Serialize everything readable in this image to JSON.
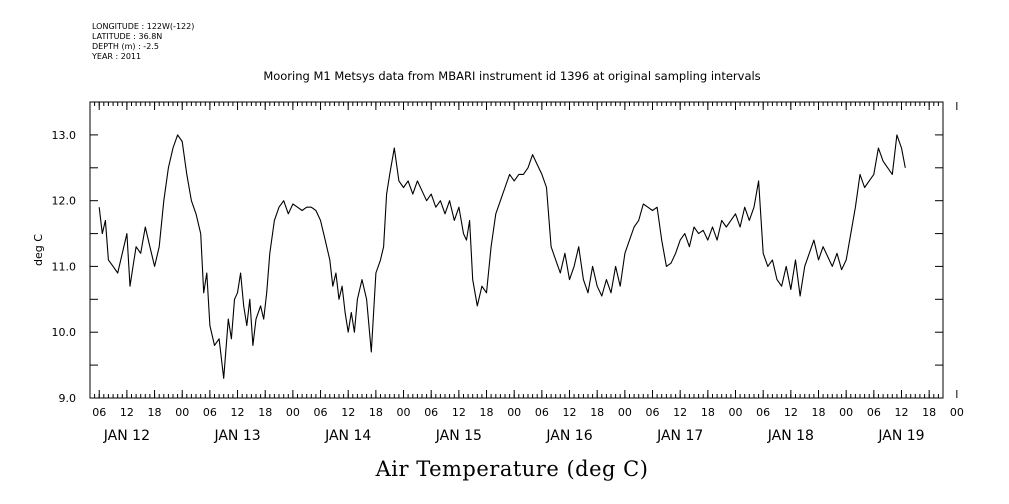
{
  "header": {
    "longitude": "LONGITUDE : 122W(-122)",
    "latitude": "LATITUDE : 36.8N",
    "depth": "DEPTH (m) : -2.5",
    "year": "YEAR : 2011"
  },
  "chart_data": {
    "type": "line",
    "title": "Mooring M1 Metsys data from MBARI instrument id 1396 at original sampling intervals",
    "xlabel": "Air Temperature (deg C)",
    "ylabel": "deg C",
    "ylim": [
      9.0,
      13.5
    ],
    "xlim": [
      "2011-01-12T04:00",
      "2011-01-19T21:00"
    ],
    "y_ticks": [
      "9.0",
      "10.0",
      "11.0",
      "12.0",
      "13.0"
    ],
    "y_tick_values": [
      9.0,
      10.0,
      11.0,
      12.0,
      13.0
    ],
    "hour_tick_labels": [
      "06",
      "12",
      "18",
      "00",
      "06",
      "12",
      "18",
      "00",
      "06",
      "12",
      "18",
      "00",
      "06",
      "12",
      "18",
      "00",
      "06",
      "12",
      "18",
      "00",
      "06",
      "12",
      "18",
      "00",
      "06",
      "12",
      "18",
      "00",
      "06",
      "12",
      "18",
      "00"
    ],
    "day_labels": [
      "JAN 12",
      "JAN 13",
      "JAN 14",
      "JAN 15",
      "JAN 16",
      "JAN 17",
      "JAN 18",
      "JAN 19"
    ],
    "grid": false,
    "series": [
      {
        "values": [
          [
            "2011-01-12T06:00",
            11.9
          ],
          [
            "2011-01-12T06:40",
            11.5
          ],
          [
            "2011-01-12T07:20",
            11.7
          ],
          [
            "2011-01-12T08:00",
            11.1
          ],
          [
            "2011-01-12T09:00",
            11.0
          ],
          [
            "2011-01-12T10:00",
            10.9
          ],
          [
            "2011-01-12T11:00",
            11.2
          ],
          [
            "2011-01-12T12:00",
            11.5
          ],
          [
            "2011-01-12T12:40",
            10.7
          ],
          [
            "2011-01-12T13:20",
            11.0
          ],
          [
            "2011-01-12T14:00",
            11.3
          ],
          [
            "2011-01-12T15:00",
            11.2
          ],
          [
            "2011-01-12T16:00",
            11.6
          ],
          [
            "2011-01-12T17:00",
            11.3
          ],
          [
            "2011-01-12T18:00",
            11.0
          ],
          [
            "2011-01-12T19:00",
            11.3
          ],
          [
            "2011-01-12T20:00",
            12.0
          ],
          [
            "2011-01-12T21:00",
            12.5
          ],
          [
            "2011-01-12T22:00",
            12.8
          ],
          [
            "2011-01-12T23:00",
            13.0
          ],
          [
            "2011-01-13T00:00",
            12.9
          ],
          [
            "2011-01-13T01:00",
            12.4
          ],
          [
            "2011-01-13T02:00",
            12.0
          ],
          [
            "2011-01-13T03:00",
            11.8
          ],
          [
            "2011-01-13T04:00",
            11.5
          ],
          [
            "2011-01-13T04:40",
            10.6
          ],
          [
            "2011-01-13T05:20",
            10.9
          ],
          [
            "2011-01-13T06:00",
            10.1
          ],
          [
            "2011-01-13T07:00",
            9.8
          ],
          [
            "2011-01-13T08:00",
            9.9
          ],
          [
            "2011-01-13T09:00",
            9.3
          ],
          [
            "2011-01-13T10:00",
            10.2
          ],
          [
            "2011-01-13T10:40",
            9.9
          ],
          [
            "2011-01-13T11:20",
            10.5
          ],
          [
            "2011-01-13T12:00",
            10.6
          ],
          [
            "2011-01-13T12:40",
            10.9
          ],
          [
            "2011-01-13T13:20",
            10.4
          ],
          [
            "2011-01-13T14:00",
            10.1
          ],
          [
            "2011-01-13T14:40",
            10.5
          ],
          [
            "2011-01-13T15:20",
            9.8
          ],
          [
            "2011-01-13T16:00",
            10.2
          ],
          [
            "2011-01-13T17:00",
            10.4
          ],
          [
            "2011-01-13T17:40",
            10.2
          ],
          [
            "2011-01-13T18:20",
            10.6
          ],
          [
            "2011-01-13T19:00",
            11.2
          ],
          [
            "2011-01-13T20:00",
            11.7
          ],
          [
            "2011-01-13T21:00",
            11.9
          ],
          [
            "2011-01-13T22:00",
            12.0
          ],
          [
            "2011-01-13T23:00",
            11.8
          ],
          [
            "2011-01-14T00:00",
            11.95
          ],
          [
            "2011-01-14T01:00",
            11.9
          ],
          [
            "2011-01-14T02:00",
            11.85
          ],
          [
            "2011-01-14T03:00",
            11.9
          ],
          [
            "2011-01-14T04:00",
            11.9
          ],
          [
            "2011-01-14T05:00",
            11.85
          ],
          [
            "2011-01-14T06:00",
            11.7
          ],
          [
            "2011-01-14T07:00",
            11.4
          ],
          [
            "2011-01-14T08:00",
            11.1
          ],
          [
            "2011-01-14T08:40",
            10.7
          ],
          [
            "2011-01-14T09:20",
            10.9
          ],
          [
            "2011-01-14T10:00",
            10.5
          ],
          [
            "2011-01-14T10:40",
            10.7
          ],
          [
            "2011-01-14T11:20",
            10.3
          ],
          [
            "2011-01-14T12:00",
            10.0
          ],
          [
            "2011-01-14T12:40",
            10.3
          ],
          [
            "2011-01-14T13:20",
            10.0
          ],
          [
            "2011-01-14T14:00",
            10.5
          ],
          [
            "2011-01-14T15:00",
            10.8
          ],
          [
            "2011-01-14T16:00",
            10.5
          ],
          [
            "2011-01-14T17:00",
            9.7
          ],
          [
            "2011-01-14T18:00",
            10.9
          ],
          [
            "2011-01-14T19:00",
            11.1
          ],
          [
            "2011-01-14T19:40",
            11.3
          ],
          [
            "2011-01-14T20:20",
            12.1
          ],
          [
            "2011-01-14T21:00",
            12.4
          ],
          [
            "2011-01-14T22:00",
            12.8
          ],
          [
            "2011-01-14T23:00",
            12.3
          ],
          [
            "2011-01-15T00:00",
            12.2
          ],
          [
            "2011-01-15T01:00",
            12.3
          ],
          [
            "2011-01-15T02:00",
            12.1
          ],
          [
            "2011-01-15T03:00",
            12.3
          ],
          [
            "2011-01-15T04:00",
            12.15
          ],
          [
            "2011-01-15T05:00",
            12.0
          ],
          [
            "2011-01-15T06:00",
            12.1
          ],
          [
            "2011-01-15T07:00",
            11.9
          ],
          [
            "2011-01-15T08:00",
            12.0
          ],
          [
            "2011-01-15T09:00",
            11.8
          ],
          [
            "2011-01-15T10:00",
            12.0
          ],
          [
            "2011-01-15T11:00",
            11.7
          ],
          [
            "2011-01-15T12:00",
            11.9
          ],
          [
            "2011-01-15T13:00",
            11.5
          ],
          [
            "2011-01-15T13:40",
            11.4
          ],
          [
            "2011-01-15T14:20",
            11.7
          ],
          [
            "2011-01-15T15:00",
            10.8
          ],
          [
            "2011-01-15T16:00",
            10.4
          ],
          [
            "2011-01-15T17:00",
            10.7
          ],
          [
            "2011-01-15T18:00",
            10.6
          ],
          [
            "2011-01-15T19:00",
            11.3
          ],
          [
            "2011-01-15T20:00",
            11.8
          ],
          [
            "2011-01-15T21:00",
            12.0
          ],
          [
            "2011-01-15T22:00",
            12.2
          ],
          [
            "2011-01-15T23:00",
            12.4
          ],
          [
            "2011-01-16T00:00",
            12.3
          ],
          [
            "2011-01-16T01:00",
            12.4
          ],
          [
            "2011-01-16T02:00",
            12.4
          ],
          [
            "2011-01-16T03:00",
            12.5
          ],
          [
            "2011-01-16T04:00",
            12.7
          ],
          [
            "2011-01-16T05:00",
            12.55
          ],
          [
            "2011-01-16T06:00",
            12.4
          ],
          [
            "2011-01-16T07:00",
            12.2
          ],
          [
            "2011-01-16T08:00",
            11.3
          ],
          [
            "2011-01-16T09:00",
            11.1
          ],
          [
            "2011-01-16T10:00",
            10.9
          ],
          [
            "2011-01-16T11:00",
            11.2
          ],
          [
            "2011-01-16T12:00",
            10.8
          ],
          [
            "2011-01-16T13:00",
            11.0
          ],
          [
            "2011-01-16T14:00",
            11.3
          ],
          [
            "2011-01-16T15:00",
            10.8
          ],
          [
            "2011-01-16T16:00",
            10.6
          ],
          [
            "2011-01-16T17:00",
            11.0
          ],
          [
            "2011-01-16T18:00",
            10.7
          ],
          [
            "2011-01-16T19:00",
            10.55
          ],
          [
            "2011-01-16T20:00",
            10.8
          ],
          [
            "2011-01-16T21:00",
            10.6
          ],
          [
            "2011-01-16T22:00",
            11.0
          ],
          [
            "2011-01-16T23:00",
            10.7
          ],
          [
            "2011-01-17T00:00",
            11.2
          ],
          [
            "2011-01-17T01:00",
            11.4
          ],
          [
            "2011-01-17T02:00",
            11.6
          ],
          [
            "2011-01-17T03:00",
            11.7
          ],
          [
            "2011-01-17T04:00",
            11.95
          ],
          [
            "2011-01-17T05:00",
            11.9
          ],
          [
            "2011-01-17T06:00",
            11.85
          ],
          [
            "2011-01-17T07:00",
            11.9
          ],
          [
            "2011-01-17T08:00",
            11.4
          ],
          [
            "2011-01-17T09:00",
            11.0
          ],
          [
            "2011-01-17T10:00",
            11.05
          ],
          [
            "2011-01-17T11:00",
            11.2
          ],
          [
            "2011-01-17T12:00",
            11.4
          ],
          [
            "2011-01-17T13:00",
            11.5
          ],
          [
            "2011-01-17T14:00",
            11.3
          ],
          [
            "2011-01-17T15:00",
            11.6
          ],
          [
            "2011-01-17T16:00",
            11.5
          ],
          [
            "2011-01-17T17:00",
            11.55
          ],
          [
            "2011-01-17T18:00",
            11.4
          ],
          [
            "2011-01-17T19:00",
            11.6
          ],
          [
            "2011-01-17T20:00",
            11.4
          ],
          [
            "2011-01-17T21:00",
            11.7
          ],
          [
            "2011-01-17T22:00",
            11.6
          ],
          [
            "2011-01-17T23:00",
            11.7
          ],
          [
            "2011-01-18T00:00",
            11.8
          ],
          [
            "2011-01-18T01:00",
            11.6
          ],
          [
            "2011-01-18T02:00",
            11.9
          ],
          [
            "2011-01-18T03:00",
            11.7
          ],
          [
            "2011-01-18T04:00",
            11.9
          ],
          [
            "2011-01-18T05:00",
            12.3
          ],
          [
            "2011-01-18T06:00",
            11.2
          ],
          [
            "2011-01-18T07:00",
            11.0
          ],
          [
            "2011-01-18T08:00",
            11.1
          ],
          [
            "2011-01-18T09:00",
            10.8
          ],
          [
            "2011-01-18T10:00",
            10.7
          ],
          [
            "2011-01-18T11:00",
            11.0
          ],
          [
            "2011-01-18T12:00",
            10.65
          ],
          [
            "2011-01-18T13:00",
            11.1
          ],
          [
            "2011-01-18T14:00",
            10.55
          ],
          [
            "2011-01-18T15:00",
            11.0
          ],
          [
            "2011-01-18T16:00",
            11.2
          ],
          [
            "2011-01-18T17:00",
            11.4
          ],
          [
            "2011-01-18T18:00",
            11.1
          ],
          [
            "2011-01-18T19:00",
            11.3
          ],
          [
            "2011-01-18T20:00",
            11.15
          ],
          [
            "2011-01-18T21:00",
            11.0
          ],
          [
            "2011-01-18T22:00",
            11.2
          ],
          [
            "2011-01-18T23:00",
            10.95
          ],
          [
            "2011-01-19T00:00",
            11.1
          ],
          [
            "2011-01-19T01:00",
            11.5
          ],
          [
            "2011-01-19T02:00",
            11.9
          ],
          [
            "2011-01-19T03:00",
            12.4
          ],
          [
            "2011-01-19T04:00",
            12.2
          ],
          [
            "2011-01-19T05:00",
            12.3
          ],
          [
            "2011-01-19T06:00",
            12.4
          ],
          [
            "2011-01-19T07:00",
            12.8
          ],
          [
            "2011-01-19T08:00",
            12.6
          ],
          [
            "2011-01-19T09:00",
            12.5
          ],
          [
            "2011-01-19T10:00",
            12.4
          ],
          [
            "2011-01-19T11:00",
            13.0
          ],
          [
            "2011-01-19T12:00",
            12.8
          ],
          [
            "2011-01-19T12:50",
            12.5
          ]
        ]
      }
    ]
  }
}
